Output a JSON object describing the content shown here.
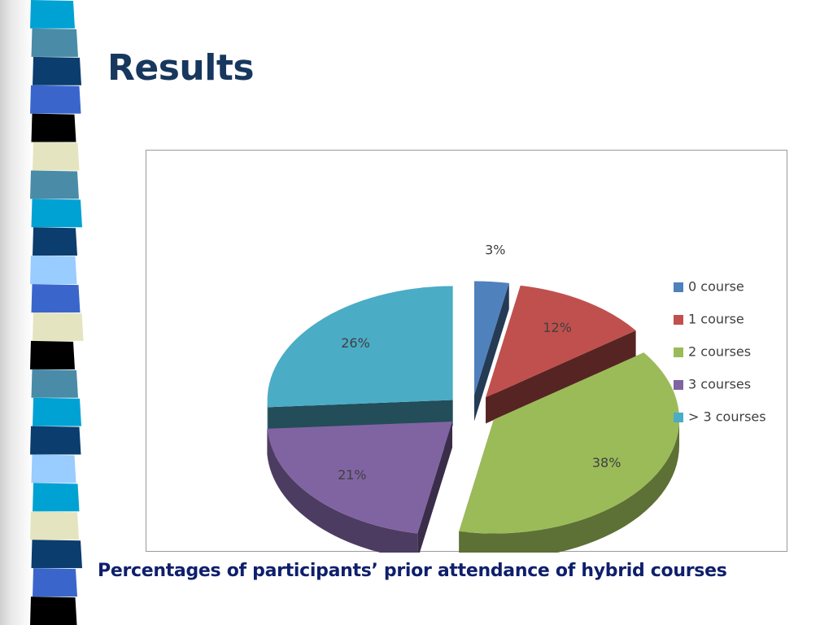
{
  "slide": {
    "title": "Results",
    "caption": "Percentages of participants’ prior attendance of hybrid courses"
  },
  "stripes": [
    "#00a2d3",
    "#4a8ba8",
    "#0b3d6e",
    "#3a66cc",
    "#000000",
    "#e4e4c0",
    "#4a8ba8",
    "#00a2d3",
    "#0b3d6e",
    "#99ccff",
    "#3a66cc",
    "#e4e4c0",
    "#000000",
    "#4a8ba8",
    "#00a2d3",
    "#0b3d6e",
    "#99ccff",
    "#00a2d3",
    "#e4e4c0",
    "#0b3d6e",
    "#3a66cc",
    "#000000"
  ],
  "chart_data": {
    "type": "pie",
    "style": "3d-exploded",
    "title": "",
    "legend_position": "right",
    "categories": [
      "0 course",
      "1 course",
      "2 courses",
      "3 courses",
      "> 3 courses"
    ],
    "values": [
      3,
      12,
      38,
      21,
      26
    ],
    "labels": [
      "3%",
      "12%",
      "38%",
      "21%",
      "26%"
    ],
    "colors": [
      "#4f81bd",
      "#c0504d",
      "#9bbb59",
      "#8064a2",
      "#4bacc6"
    ]
  }
}
